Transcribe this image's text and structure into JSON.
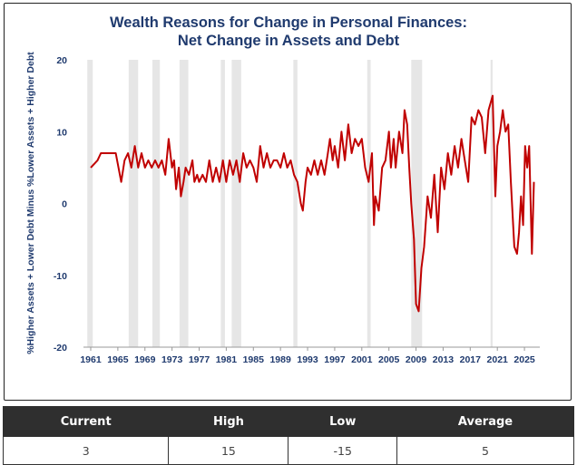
{
  "chart_data": {
    "type": "line",
    "title": [
      "Wealth Reasons for Change in Personal Finances:",
      "Net Change in Assets and Debt"
    ],
    "ylabel": "%Higher Assets + Lower Debt Minus %Lower Assets + Higher Debt",
    "xlabel": "",
    "ylim": [
      -20,
      20
    ],
    "yticks": [
      -20,
      -10,
      0,
      10,
      20
    ],
    "xticks": [
      "1961",
      "1965",
      "1969",
      "1973",
      "1977",
      "1981",
      "1985",
      "1989",
      "1993",
      "1997",
      "2001",
      "2005",
      "2009",
      "2013",
      "2017",
      "2021",
      "2025"
    ],
    "grid": false,
    "line_color": "#c00000",
    "recession_color": "#e6e6e6",
    "recessions": [
      [
        1960.5,
        1961.3
      ],
      [
        1966.6,
        1968.0
      ],
      [
        1970.1,
        1971.2
      ],
      [
        1974.1,
        1975.4
      ],
      [
        1980.2,
        1980.8
      ],
      [
        1981.8,
        1983.2
      ],
      [
        1990.9,
        1991.5
      ],
      [
        2001.8,
        2002.3
      ],
      [
        2008.3,
        2009.9
      ],
      [
        2020.0,
        2020.3
      ]
    ],
    "series": [
      {
        "x": [
          1961,
          1962,
          1962.5,
          1963,
          1964,
          1964.7,
          1965.5,
          1966,
          1966.5,
          1967,
          1967.5,
          1968,
          1968.5,
          1969,
          1969.5,
          1970,
          1970.5,
          1971,
          1971.5,
          1972,
          1972.5,
          1973,
          1973.3,
          1973.6,
          1974,
          1974.3,
          1974.7,
          1975,
          1975.5,
          1976,
          1976.3,
          1976.7,
          1977,
          1977.5,
          1978,
          1978.5,
          1979,
          1979.5,
          1980,
          1980.5,
          1981,
          1981.5,
          1982,
          1982.5,
          1983,
          1983.5,
          1984,
          1984.5,
          1985,
          1985.5,
          1986,
          1986.5,
          1987,
          1987.5,
          1988,
          1988.5,
          1989,
          1989.5,
          1990,
          1990.5,
          1991,
          1991.5,
          1992,
          1992.3,
          1992.7,
          1993,
          1993.5,
          1994,
          1994.5,
          1995,
          1995.5,
          1996,
          1996.3,
          1996.7,
          1997,
          1997.5,
          1998,
          1998.5,
          1999,
          1999.5,
          2000,
          2000.5,
          2001,
          2001.5,
          2002,
          2002.5,
          2002.8,
          2003,
          2003.5,
          2004,
          2004.5,
          2005,
          2005.3,
          2005.7,
          2006,
          2006.5,
          2007,
          2007.3,
          2007.7,
          2008,
          2008.3,
          2008.7,
          2009,
          2009.4,
          2009.8,
          2010.2,
          2010.7,
          2011.2,
          2011.7,
          2012.2,
          2012.7,
          2013.2,
          2013.7,
          2014.2,
          2014.7,
          2015.2,
          2015.7,
          2016.2,
          2016.7,
          2017.2,
          2017.7,
          2018.2,
          2018.7,
          2019.2,
          2019.7,
          2020.3,
          2020.7,
          2021,
          2021.4,
          2021.8,
          2022.2,
          2022.6,
          2023,
          2023.5,
          2023.9,
          2024.2,
          2024.5,
          2024.8,
          2025.1,
          2025.4,
          2025.7,
          2026.1,
          2026.4
        ],
        "values": [
          5,
          6,
          7,
          7,
          7,
          7,
          3,
          6,
          7,
          5,
          8,
          5,
          7,
          5,
          6,
          5,
          6,
          5,
          6,
          4,
          9,
          5,
          6,
          2,
          5,
          1,
          3,
          5,
          4,
          6,
          3,
          4,
          3,
          4,
          3,
          6,
          3,
          5,
          3,
          6,
          3,
          6,
          4,
          6,
          3,
          7,
          5,
          6,
          5,
          3,
          8,
          5,
          7,
          5,
          6,
          6,
          5,
          7,
          5,
          6,
          4,
          3,
          0,
          -1,
          3,
          5,
          4,
          6,
          4,
          6,
          4,
          7,
          9,
          6,
          8,
          5,
          10,
          6,
          11,
          7,
          9,
          8,
          9,
          5,
          3,
          7,
          -3,
          1,
          -1,
          5,
          6,
          10,
          5,
          9,
          5,
          10,
          7,
          13,
          11,
          5,
          0,
          -5,
          -14,
          -15,
          -9,
          -6,
          1,
          -2,
          4,
          -4,
          5,
          2,
          7,
          4,
          8,
          5,
          9,
          6,
          3,
          12,
          11,
          13,
          12,
          7,
          13,
          15,
          1,
          8,
          10,
          13,
          10,
          11,
          3,
          -6,
          -7,
          -4,
          1,
          -3,
          8,
          5,
          8,
          -7,
          3
        ]
      }
    ]
  },
  "table": {
    "headers": [
      "Current",
      "High",
      "Low",
      "Average"
    ],
    "values": [
      "3",
      "15",
      "-15",
      "5"
    ]
  }
}
